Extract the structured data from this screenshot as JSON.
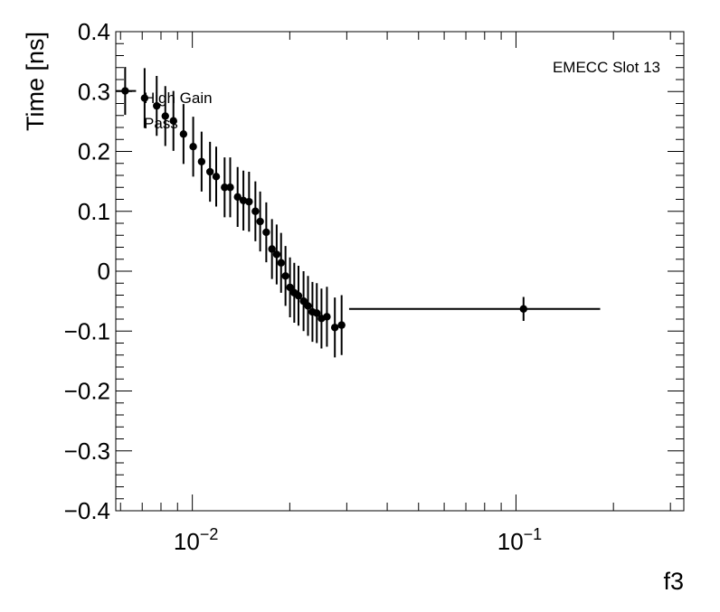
{
  "chart_data": {
    "type": "scatter",
    "xlabel": "f3",
    "ylabel": "Time [ns]",
    "x_scale": "log",
    "xlim": [
      0.0058,
      0.33
    ],
    "ylim": [
      -0.4,
      0.4
    ],
    "x_tick_labels": [
      "10^-2",
      "10^-1"
    ],
    "y_tick_labels": [
      "0.4",
      "0.3",
      "0.2",
      "0.1",
      "0",
      "−0.1",
      "−0.2",
      "−0.3",
      "−0.4"
    ],
    "y_tick_values": [
      0.4,
      0.3,
      0.2,
      0.1,
      0,
      -0.1,
      -0.2,
      -0.3,
      -0.4
    ],
    "annotations": [
      "EMECC Slot 13",
      "High Gain",
      "Pass"
    ],
    "grid": false,
    "series": [
      {
        "points": [
          {
            "x": 0.0062,
            "y": 0.301,
            "yerr": 0.04,
            "xlo": 0.0058,
            "xhi": 0.0067
          },
          {
            "x": 0.00712,
            "y": 0.289,
            "yerr": 0.05
          },
          {
            "x": 0.00776,
            "y": 0.276,
            "yerr": 0.05
          },
          {
            "x": 0.00825,
            "y": 0.259,
            "yerr": 0.05
          },
          {
            "x": 0.00874,
            "y": 0.251,
            "yerr": 0.05
          },
          {
            "x": 0.00939,
            "y": 0.229,
            "yerr": 0.05
          },
          {
            "x": 0.01006,
            "y": 0.208,
            "yerr": 0.05
          },
          {
            "x": 0.01068,
            "y": 0.183,
            "yerr": 0.05
          },
          {
            "x": 0.01134,
            "y": 0.166,
            "yerr": 0.05
          },
          {
            "x": 0.01185,
            "y": 0.158,
            "yerr": 0.05
          },
          {
            "x": 0.01258,
            "y": 0.14,
            "yerr": 0.05
          },
          {
            "x": 0.01309,
            "y": 0.14,
            "yerr": 0.05
          },
          {
            "x": 0.0138,
            "y": 0.124,
            "yerr": 0.05
          },
          {
            "x": 0.01438,
            "y": 0.118,
            "yerr": 0.05
          },
          {
            "x": 0.01497,
            "y": 0.116,
            "yerr": 0.05
          },
          {
            "x": 0.01566,
            "y": 0.1,
            "yerr": 0.05
          },
          {
            "x": 0.0162,
            "y": 0.083,
            "yerr": 0.05
          },
          {
            "x": 0.01692,
            "y": 0.065,
            "yerr": 0.05
          },
          {
            "x": 0.01762,
            "y": 0.037,
            "yerr": 0.05
          },
          {
            "x": 0.01822,
            "y": 0.028,
            "yerr": 0.05
          },
          {
            "x": 0.0188,
            "y": 0.014,
            "yerr": 0.05
          },
          {
            "x": 0.0194,
            "y": -0.008,
            "yerr": 0.05
          },
          {
            "x": 0.02003,
            "y": -0.027,
            "yerr": 0.05
          },
          {
            "x": 0.02065,
            "y": -0.036,
            "yerr": 0.05
          },
          {
            "x": 0.02128,
            "y": -0.041,
            "yerr": 0.05
          },
          {
            "x": 0.02206,
            "y": -0.05,
            "yerr": 0.05
          },
          {
            "x": 0.02277,
            "y": -0.058,
            "yerr": 0.05
          },
          {
            "x": 0.0235,
            "y": -0.068,
            "yerr": 0.05
          },
          {
            "x": 0.02424,
            "y": -0.07,
            "yerr": 0.05
          },
          {
            "x": 0.02506,
            "y": -0.079,
            "yerr": 0.05
          },
          {
            "x": 0.02605,
            "y": -0.076,
            "yerr": 0.05
          },
          {
            "x": 0.02756,
            "y": -0.094,
            "yerr": 0.05
          },
          {
            "x": 0.02892,
            "y": -0.09,
            "yerr": 0.05
          },
          {
            "x": 0.1055,
            "y": -0.063,
            "yerr": 0.02,
            "xlo": 0.0305,
            "xhi": 0.182
          }
        ]
      }
    ]
  }
}
